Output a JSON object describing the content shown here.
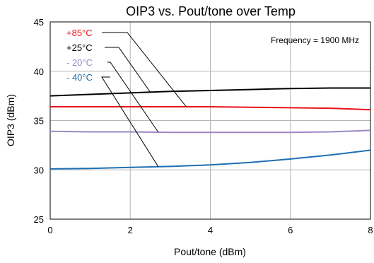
{
  "chart_data": {
    "type": "line",
    "title": "OIP3 vs. Pout/tone over Temp",
    "xlabel": "Pout/tone (dBm)",
    "ylabel": "OIP3 (dBm)",
    "xlim": [
      0,
      8
    ],
    "ylim": [
      25,
      45
    ],
    "x_ticks": [
      0,
      2,
      4,
      6,
      8
    ],
    "y_ticks": [
      25,
      30,
      35,
      40,
      45
    ],
    "grid": true,
    "annotation": "Frequency = 1900 MHz",
    "legend_placement": "top-left, with leader lines to curves",
    "series": [
      {
        "name": "+85°C",
        "color": "#e8141b",
        "x": [
          0,
          1,
          2,
          3,
          4,
          5,
          6,
          7,
          8
        ],
        "y": [
          36.4,
          36.4,
          36.4,
          36.4,
          36.4,
          36.35,
          36.3,
          36.25,
          36.1
        ],
        "leader_target_x": 3.4
      },
      {
        "name": "+25°C",
        "color": "#000000",
        "x": [
          0,
          1,
          2,
          3,
          4,
          5,
          6,
          7,
          8
        ],
        "y": [
          37.5,
          37.65,
          37.8,
          37.95,
          38.05,
          38.15,
          38.25,
          38.3,
          38.3
        ],
        "leader_target_x": 2.5
      },
      {
        "name": "- 20°C",
        "color": "#9b88c4",
        "x": [
          0,
          1,
          2,
          3,
          4,
          5,
          6,
          7,
          8
        ],
        "y": [
          33.9,
          33.85,
          33.85,
          33.8,
          33.8,
          33.8,
          33.8,
          33.85,
          34.0
        ],
        "leader_target_x": 2.7
      },
      {
        "name": "- 40°C",
        "color": "#1f6fb4",
        "x": [
          0,
          1,
          2,
          3,
          4,
          5,
          6,
          7,
          8
        ],
        "y": [
          30.1,
          30.15,
          30.25,
          30.35,
          30.5,
          30.75,
          31.1,
          31.5,
          32.0
        ],
        "leader_target_x": 2.7
      }
    ]
  }
}
